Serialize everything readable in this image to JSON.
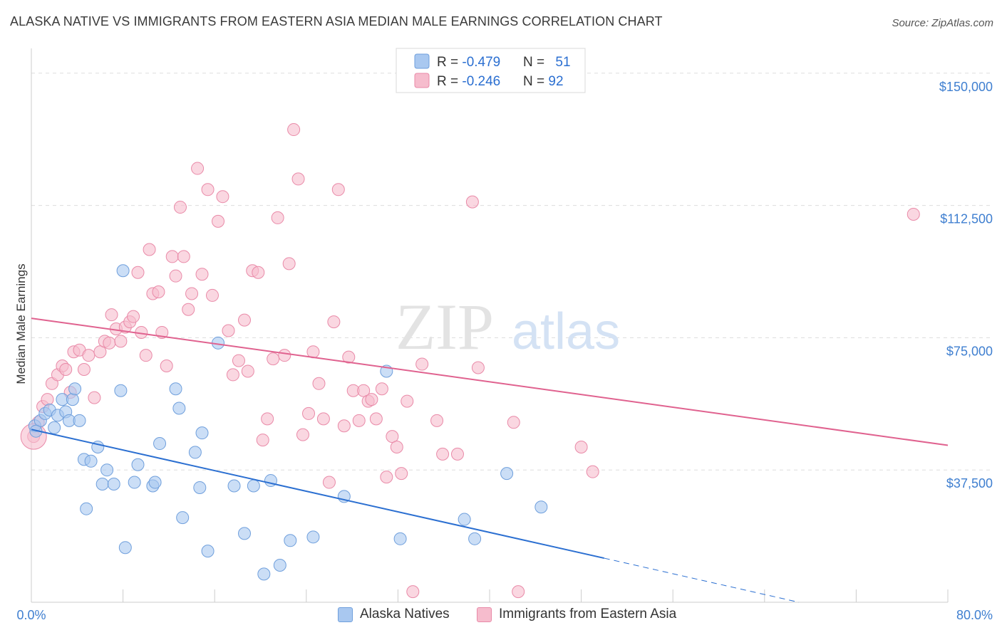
{
  "title": "ALASKA NATIVE VS IMMIGRANTS FROM EASTERN ASIA MEDIAN MALE EARNINGS CORRELATION CHART",
  "source": "Source: ZipAtlas.com",
  "watermark": {
    "zip": "ZIP",
    "atlas": "atlas"
  },
  "colors": {
    "blue_fill": "#a9c8f0",
    "blue_stroke": "#6f9fdc",
    "blue_line": "#2b6fd1",
    "pink_fill": "#f6bccd",
    "pink_stroke": "#e98aa8",
    "pink_line": "#e0628f",
    "tick_text": "#3f7fd0",
    "grid": "#dddddd"
  },
  "legend": {
    "rows": [
      {
        "r_label": "R = ",
        "r_value": "-0.479",
        "n_label": "N = ",
        "n_value": "51",
        "color": "blue"
      },
      {
        "r_label": "R = ",
        "r_value": "-0.246",
        "n_label": "N = ",
        "n_value": "92",
        "color": "pink"
      }
    ]
  },
  "bottom_legend": [
    "Alaska Natives",
    "Immigrants from Eastern Asia"
  ],
  "chart_data": {
    "type": "scatter",
    "xlabel": "",
    "ylabel": "Median Male Earnings",
    "xlim": [
      0,
      80
    ],
    "ylim": [
      0,
      155000
    ],
    "x_tick_labels": [
      "0.0%",
      "80.0%"
    ],
    "y_ticks": [
      37500,
      75000,
      112500,
      150000
    ],
    "y_tick_labels": [
      "$37,500",
      "$75,000",
      "$112,500",
      "$150,000"
    ],
    "grid": true,
    "legend_position": "top-center",
    "series": [
      {
        "name": "Alaska Natives",
        "color": "blue",
        "points": [
          [
            0.3,
            50000
          ],
          [
            0.8,
            51500
          ],
          [
            1.2,
            53500
          ],
          [
            1.6,
            54500
          ],
          [
            2.0,
            49500
          ],
          [
            2.3,
            53000
          ],
          [
            2.7,
            57500
          ],
          [
            3.0,
            54000
          ],
          [
            3.3,
            51500
          ],
          [
            3.6,
            57500
          ],
          [
            3.8,
            60500
          ],
          [
            4.2,
            51500
          ],
          [
            4.6,
            40500
          ],
          [
            4.8,
            26500
          ],
          [
            5.2,
            40000
          ],
          [
            5.8,
            44000
          ],
          [
            6.2,
            33500
          ],
          [
            6.6,
            37500
          ],
          [
            7.2,
            33500
          ],
          [
            7.8,
            60000
          ],
          [
            8.2,
            15500
          ],
          [
            9.0,
            34000
          ],
          [
            9.3,
            39000
          ],
          [
            10.6,
            33000
          ],
          [
            10.8,
            34000
          ],
          [
            11.2,
            45000
          ],
          [
            12.6,
            60500
          ],
          [
            12.9,
            55000
          ],
          [
            13.2,
            24000
          ],
          [
            14.3,
            42500
          ],
          [
            14.7,
            32500
          ],
          [
            14.9,
            48000
          ],
          [
            15.4,
            14500
          ],
          [
            16.3,
            73500
          ],
          [
            17.7,
            33000
          ],
          [
            18.6,
            19500
          ],
          [
            19.4,
            33000
          ],
          [
            20.3,
            8000
          ],
          [
            20.9,
            34500
          ],
          [
            21.7,
            10500
          ],
          [
            22.6,
            17500
          ],
          [
            24.6,
            18500
          ],
          [
            27.3,
            30000
          ],
          [
            31.0,
            65500
          ],
          [
            32.2,
            18000
          ],
          [
            37.8,
            23500
          ],
          [
            38.7,
            18000
          ],
          [
            41.5,
            36500
          ],
          [
            44.5,
            27000
          ],
          [
            8.0,
            94000
          ],
          [
            0.4,
            48500
          ]
        ]
      },
      {
        "name": "Immigrants from Eastern Asia",
        "color": "pink",
        "points": [
          [
            0.2,
            47000
          ],
          [
            0.6,
            51000
          ],
          [
            1.0,
            55500
          ],
          [
            1.4,
            57500
          ],
          [
            1.8,
            62000
          ],
          [
            2.3,
            64500
          ],
          [
            2.7,
            67000
          ],
          [
            3.0,
            66000
          ],
          [
            3.4,
            59500
          ],
          [
            3.7,
            71000
          ],
          [
            4.2,
            71500
          ],
          [
            4.6,
            66000
          ],
          [
            5.0,
            70000
          ],
          [
            5.5,
            58000
          ],
          [
            6.0,
            71000
          ],
          [
            6.4,
            74000
          ],
          [
            6.8,
            73500
          ],
          [
            7.0,
            81500
          ],
          [
            7.4,
            77500
          ],
          [
            7.8,
            74000
          ],
          [
            8.2,
            78000
          ],
          [
            8.6,
            79500
          ],
          [
            8.9,
            81000
          ],
          [
            9.3,
            93500
          ],
          [
            9.6,
            76500
          ],
          [
            10.0,
            70000
          ],
          [
            10.3,
            100000
          ],
          [
            10.6,
            87500
          ],
          [
            11.1,
            88000
          ],
          [
            11.4,
            76500
          ],
          [
            11.8,
            67000
          ],
          [
            12.3,
            98000
          ],
          [
            12.6,
            92500
          ],
          [
            13.0,
            112000
          ],
          [
            13.3,
            98000
          ],
          [
            13.7,
            83000
          ],
          [
            14.0,
            87500
          ],
          [
            14.5,
            123000
          ],
          [
            14.9,
            93000
          ],
          [
            15.4,
            117000
          ],
          [
            15.8,
            87000
          ],
          [
            16.3,
            108000
          ],
          [
            16.7,
            115000
          ],
          [
            17.2,
            77000
          ],
          [
            17.6,
            64500
          ],
          [
            18.1,
            68500
          ],
          [
            18.6,
            80000
          ],
          [
            18.9,
            65500
          ],
          [
            19.3,
            94000
          ],
          [
            19.8,
            93500
          ],
          [
            20.2,
            46000
          ],
          [
            20.6,
            52000
          ],
          [
            21.1,
            69000
          ],
          [
            21.5,
            109000
          ],
          [
            22.1,
            70000
          ],
          [
            22.5,
            96000
          ],
          [
            22.9,
            134000
          ],
          [
            23.3,
            120000
          ],
          [
            23.7,
            47500
          ],
          [
            24.2,
            53500
          ],
          [
            24.6,
            71000
          ],
          [
            25.1,
            62000
          ],
          [
            25.5,
            52000
          ],
          [
            26.0,
            34000
          ],
          [
            26.4,
            79500
          ],
          [
            26.8,
            117000
          ],
          [
            27.3,
            50000
          ],
          [
            27.7,
            69500
          ],
          [
            28.1,
            60000
          ],
          [
            28.6,
            51500
          ],
          [
            29.0,
            60000
          ],
          [
            29.4,
            57000
          ],
          [
            29.7,
            57500
          ],
          [
            30.1,
            52000
          ],
          [
            30.6,
            60500
          ],
          [
            31.0,
            35500
          ],
          [
            31.5,
            47000
          ],
          [
            31.9,
            44000
          ],
          [
            32.3,
            36500
          ],
          [
            32.8,
            57000
          ],
          [
            33.3,
            3000
          ],
          [
            34.1,
            67500
          ],
          [
            35.4,
            51500
          ],
          [
            35.9,
            42000
          ],
          [
            37.2,
            42000
          ],
          [
            42.1,
            51000
          ],
          [
            42.5,
            3000
          ],
          [
            48.0,
            44000
          ],
          [
            49.0,
            37000
          ],
          [
            77.0,
            110000
          ],
          [
            38.5,
            113500
          ],
          [
            39.0,
            66500
          ]
        ]
      }
    ],
    "trend_lines": [
      {
        "series": "Alaska Natives",
        "x0": 0,
        "y0": 49000,
        "x1": 50,
        "y1": 12500,
        "dashed_to_x": 67,
        "dashed_to_y": 0
      },
      {
        "series": "Immigrants from Eastern Asia",
        "x0": 0,
        "y0": 80500,
        "x1": 80,
        "y1": 44500
      }
    ]
  }
}
